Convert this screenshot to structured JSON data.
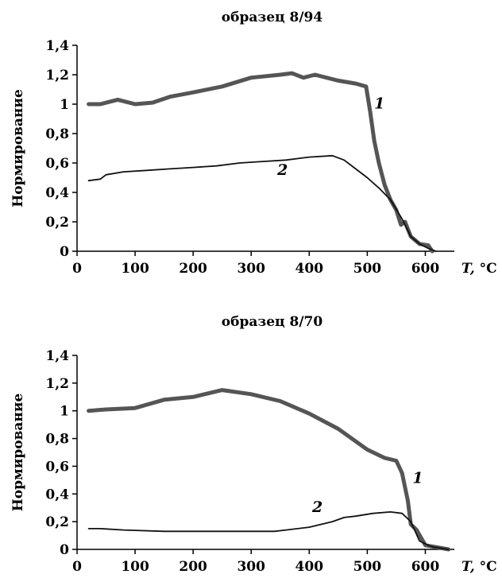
{
  "chart_data": [
    {
      "type": "line",
      "title": "образец 8/94",
      "ylabel": "Нормирование",
      "xlabel_prefix": "T,",
      "xlabel_unit": "°C",
      "xlim": [
        0,
        650
      ],
      "ylim": [
        0,
        1.4
      ],
      "x_ticks": [
        0,
        100,
        200,
        300,
        400,
        500,
        600
      ],
      "y_ticks": [
        0,
        0.2,
        0.4,
        0.6,
        0.8,
        1,
        1.2,
        1.4
      ],
      "y_tick_labels": [
        "0",
        "0,2",
        "0,4",
        "0,6",
        "0,8",
        "1",
        "1,2",
        "1,4"
      ],
      "grid": false,
      "series": [
        {
          "label": "1",
          "label_at": [
            512,
            0.97
          ],
          "color": "#555555",
          "width": 5,
          "points": [
            [
              20,
              1.0
            ],
            [
              40,
              1.0
            ],
            [
              70,
              1.03
            ],
            [
              100,
              1.0
            ],
            [
              130,
              1.01
            ],
            [
              160,
              1.05
            ],
            [
              200,
              1.08
            ],
            [
              250,
              1.12
            ],
            [
              300,
              1.18
            ],
            [
              350,
              1.2
            ],
            [
              370,
              1.21
            ],
            [
              390,
              1.18
            ],
            [
              410,
              1.2
            ],
            [
              450,
              1.16
            ],
            [
              480,
              1.14
            ],
            [
              498,
              1.12
            ],
            [
              505,
              0.95
            ],
            [
              512,
              0.75
            ],
            [
              520,
              0.6
            ],
            [
              530,
              0.45
            ],
            [
              540,
              0.35
            ],
            [
              550,
              0.28
            ],
            [
              558,
              0.18
            ],
            [
              565,
              0.2
            ],
            [
              575,
              0.1
            ],
            [
              590,
              0.05
            ],
            [
              605,
              0.04
            ],
            [
              612,
              0.0
            ]
          ]
        },
        {
          "label": "2",
          "label_at": [
            345,
            0.52
          ],
          "color": "#111111",
          "width": 1.8,
          "points": [
            [
              20,
              0.48
            ],
            [
              40,
              0.49
            ],
            [
              50,
              0.52
            ],
            [
              80,
              0.54
            ],
            [
              120,
              0.55
            ],
            [
              160,
              0.56
            ],
            [
              200,
              0.57
            ],
            [
              240,
              0.58
            ],
            [
              280,
              0.6
            ],
            [
              320,
              0.61
            ],
            [
              360,
              0.62
            ],
            [
              400,
              0.64
            ],
            [
              440,
              0.65
            ],
            [
              460,
              0.62
            ],
            [
              480,
              0.56
            ],
            [
              500,
              0.5
            ],
            [
              520,
              0.43
            ],
            [
              540,
              0.35
            ],
            [
              560,
              0.22
            ],
            [
              575,
              0.1
            ],
            [
              590,
              0.05
            ],
            [
              605,
              0.02
            ],
            [
              618,
              0.0
            ]
          ]
        }
      ]
    },
    {
      "type": "line",
      "title": "образец 8/70",
      "ylabel": "Нормирование",
      "xlabel_prefix": "T,",
      "xlabel_unit": "°C",
      "xlim": [
        0,
        650
      ],
      "ylim": [
        0,
        1.4
      ],
      "x_ticks": [
        0,
        100,
        200,
        300,
        400,
        500,
        600
      ],
      "y_ticks": [
        0,
        0.2,
        0.4,
        0.6,
        0.8,
        1,
        1.2,
        1.4
      ],
      "y_tick_labels": [
        "0",
        "0,2",
        "0,4",
        "0,6",
        "0,8",
        "1",
        "1,2",
        "1,4"
      ],
      "grid": false,
      "series": [
        {
          "label": "1",
          "label_at": [
            578,
            0.48
          ],
          "color": "#555555",
          "width": 5,
          "points": [
            [
              20,
              1.0
            ],
            [
              50,
              1.01
            ],
            [
              100,
              1.02
            ],
            [
              150,
              1.08
            ],
            [
              200,
              1.1
            ],
            [
              250,
              1.15
            ],
            [
              300,
              1.12
            ],
            [
              350,
              1.07
            ],
            [
              400,
              0.98
            ],
            [
              450,
              0.87
            ],
            [
              500,
              0.72
            ],
            [
              530,
              0.66
            ],
            [
              550,
              0.64
            ],
            [
              560,
              0.55
            ],
            [
              570,
              0.35
            ],
            [
              575,
              0.18
            ],
            [
              585,
              0.14
            ],
            [
              600,
              0.03
            ],
            [
              640,
              0.0
            ]
          ]
        },
        {
          "label": "2",
          "label_at": [
            405,
            0.27
          ],
          "color": "#111111",
          "width": 1.8,
          "points": [
            [
              20,
              0.15
            ],
            [
              40,
              0.15
            ],
            [
              80,
              0.14
            ],
            [
              150,
              0.13
            ],
            [
              250,
              0.13
            ],
            [
              340,
              0.13
            ],
            [
              360,
              0.14
            ],
            [
              400,
              0.16
            ],
            [
              440,
              0.2
            ],
            [
              460,
              0.23
            ],
            [
              480,
              0.24
            ],
            [
              510,
              0.26
            ],
            [
              540,
              0.27
            ],
            [
              560,
              0.26
            ],
            [
              575,
              0.2
            ],
            [
              590,
              0.06
            ],
            [
              610,
              0.02
            ],
            [
              640,
              0.0
            ]
          ]
        }
      ]
    }
  ]
}
